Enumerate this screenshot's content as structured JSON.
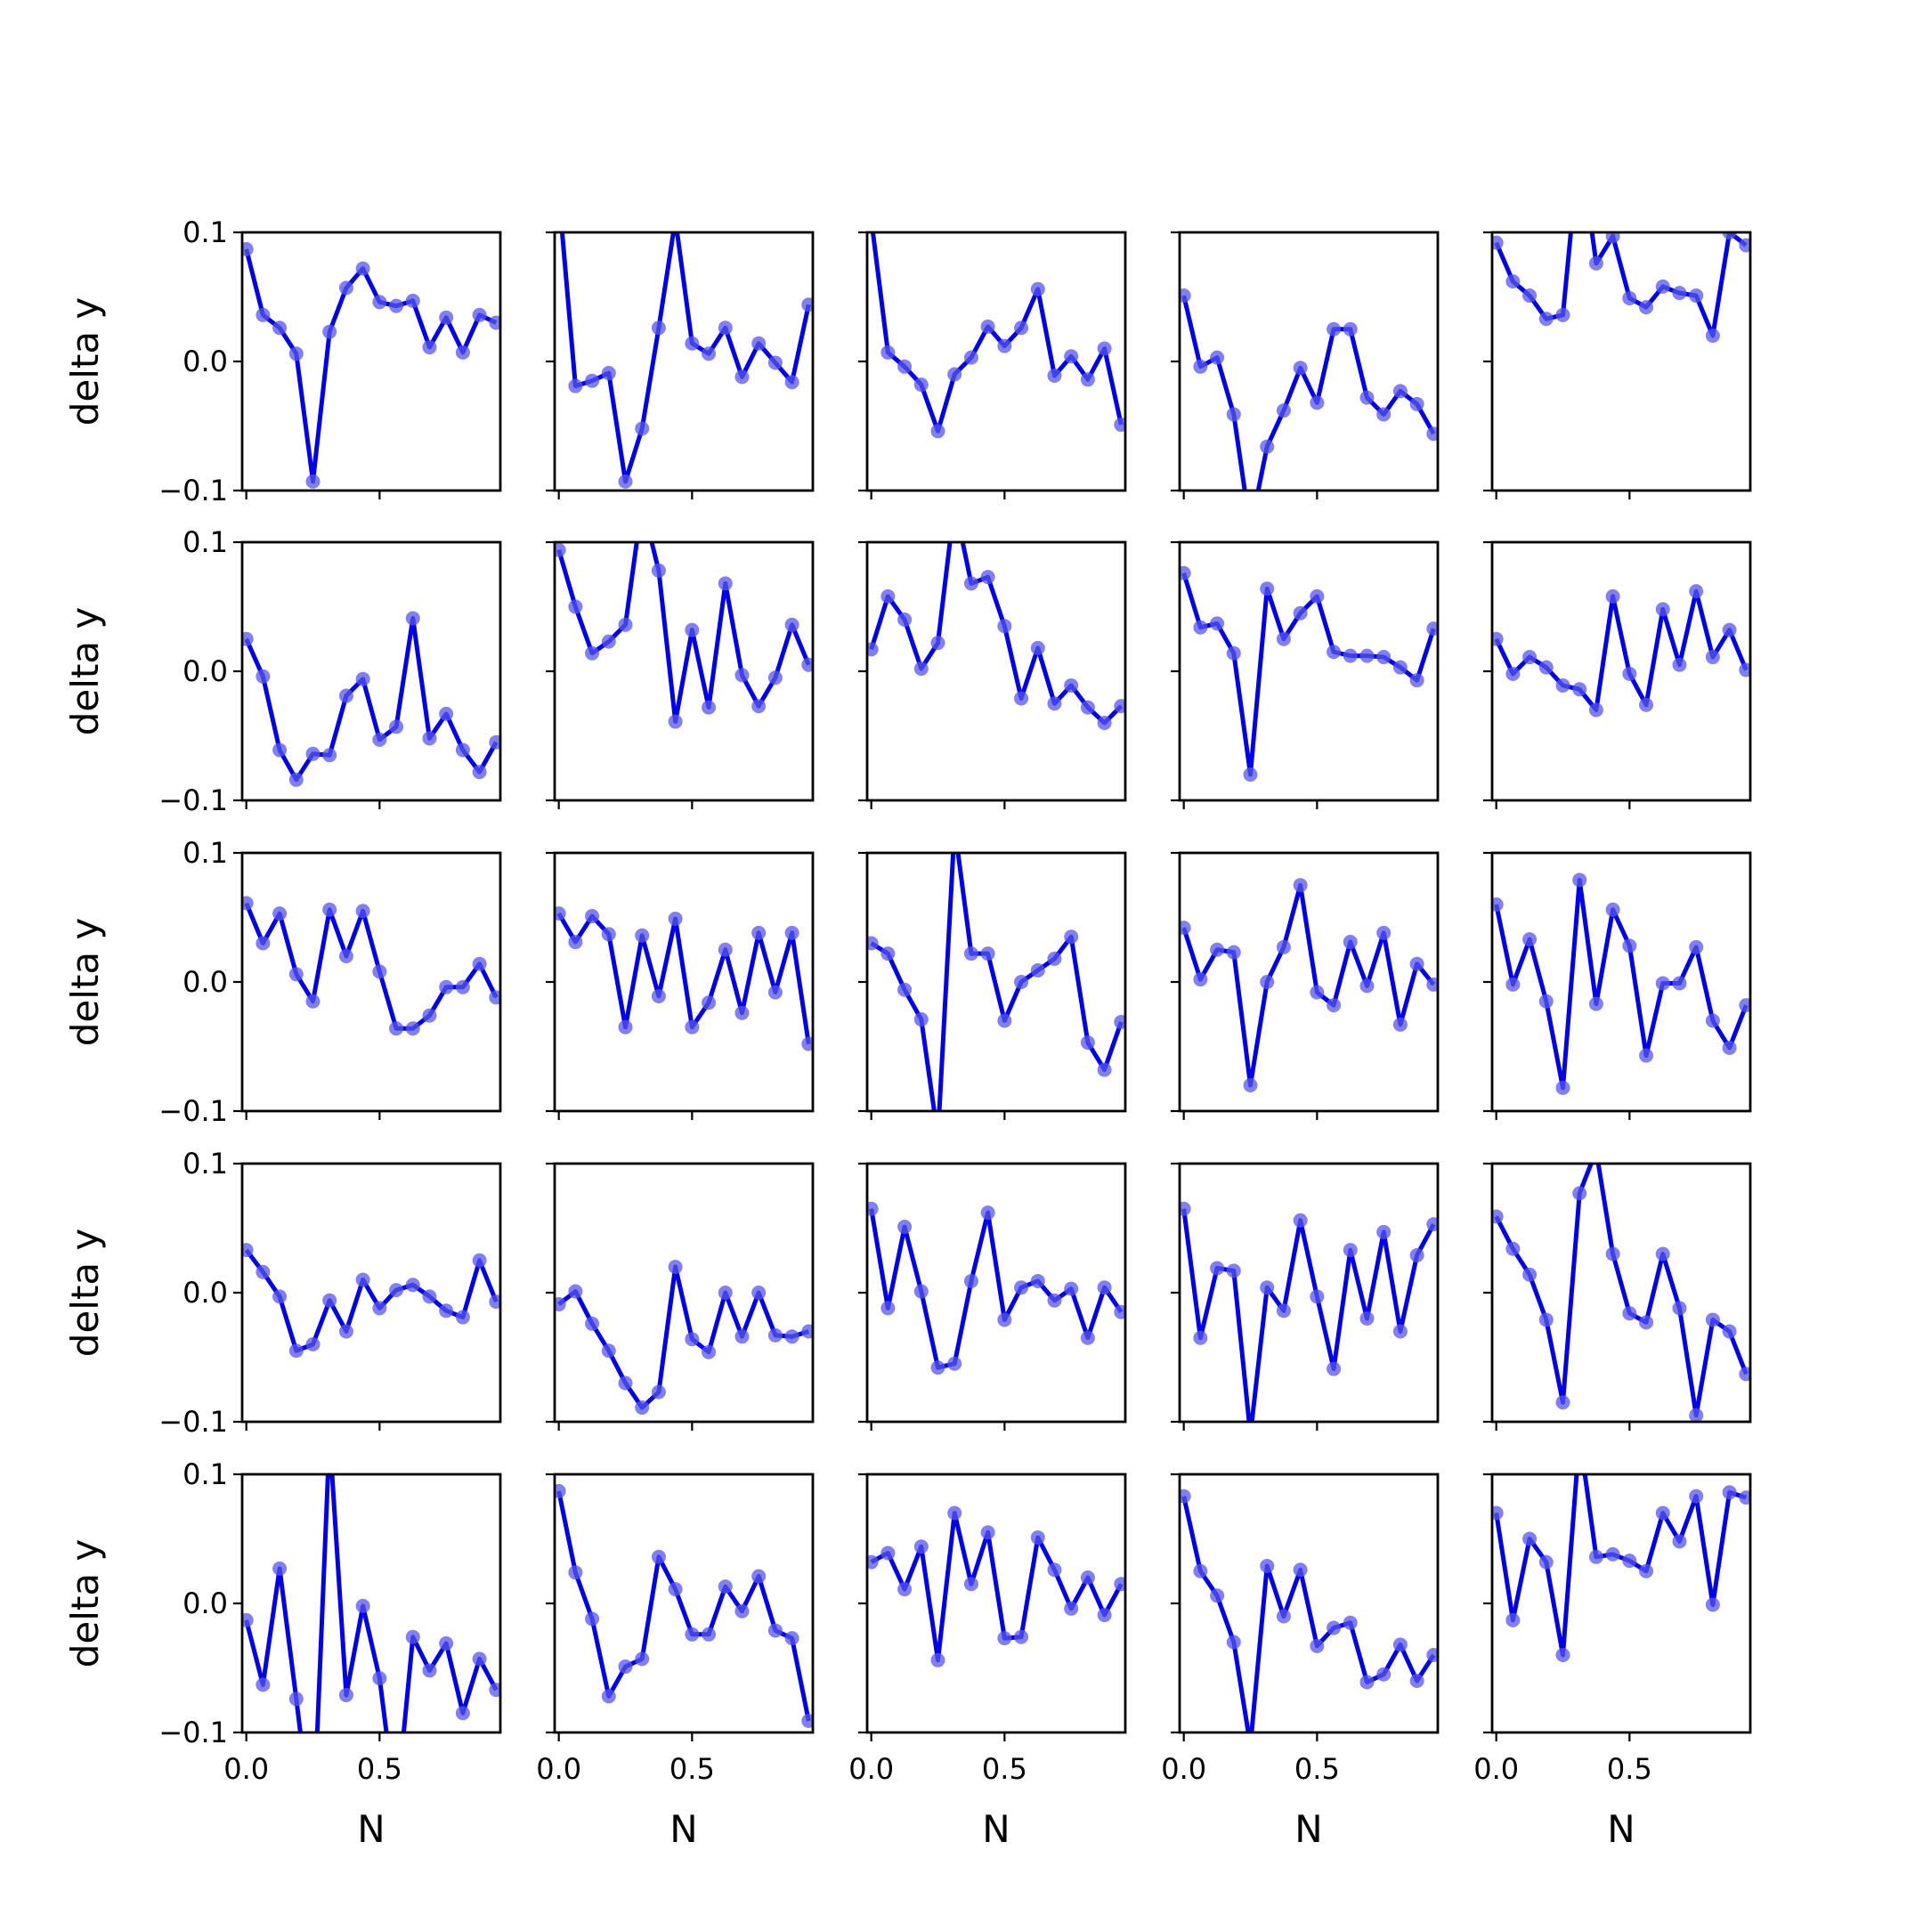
{
  "chart_data": {
    "type": "line",
    "layout": "5x5 small multiples",
    "sharey": true,
    "xlabel": "N",
    "ylabel": "delta y",
    "xlim": [
      -0.0156,
      0.9531
    ],
    "ylim": [
      -0.1,
      0.1
    ],
    "xticks": [
      0.0,
      0.5
    ],
    "xtick_labels": [
      "0.0",
      "0.5"
    ],
    "yticks": [
      -0.1,
      0.0,
      0.1
    ],
    "ytick_labels": [
      "−0.1",
      "0.0",
      "0.1"
    ],
    "grid": false,
    "legend": "none",
    "colors": {
      "line": "#0000ee",
      "marker": "#5555ee"
    },
    "x": [
      0.0,
      0.0625,
      0.125,
      0.1875,
      0.25,
      0.3125,
      0.375,
      0.4375,
      0.5,
      0.5625,
      0.625,
      0.6875,
      0.75,
      0.8125,
      0.875,
      0.9375
    ],
    "panels": [
      {
        "values": [
          0.087,
          0.036,
          0.026,
          0.006,
          -0.093,
          0.023,
          0.057,
          0.072,
          0.046,
          0.043,
          0.047,
          0.011,
          0.034,
          0.007,
          0.036,
          0.03
        ]
      },
      {
        "values": [
          0.13,
          -0.019,
          -0.015,
          -0.009,
          -0.093,
          -0.052,
          0.026,
          0.11,
          0.014,
          0.006,
          0.026,
          -0.012,
          0.014,
          -0.001,
          -0.016,
          0.044
        ]
      },
      {
        "values": [
          0.11,
          0.007,
          -0.004,
          -0.018,
          -0.054,
          -0.01,
          0.003,
          0.027,
          0.012,
          0.026,
          0.056,
          -0.011,
          0.004,
          -0.014,
          0.01,
          -0.049
        ]
      },
      {
        "values": [
          0.051,
          -0.004,
          0.003,
          -0.041,
          -0.13,
          -0.066,
          -0.038,
          -0.005,
          -0.032,
          0.025,
          0.025,
          -0.028,
          -0.041,
          -0.023,
          -0.033,
          -0.056
        ]
      },
      {
        "values": [
          0.092,
          0.062,
          0.051,
          0.033,
          0.036,
          0.17,
          0.076,
          0.097,
          0.049,
          0.042,
          0.058,
          0.053,
          0.051,
          0.02,
          0.1,
          0.09
        ]
      },
      {
        "values": [
          0.025,
          -0.004,
          -0.061,
          -0.084,
          -0.064,
          -0.065,
          -0.019,
          -0.006,
          -0.053,
          -0.043,
          0.041,
          -0.052,
          -0.033,
          -0.061,
          -0.078,
          -0.055
        ]
      },
      {
        "values": [
          0.094,
          0.05,
          0.014,
          0.023,
          0.036,
          0.13,
          0.078,
          -0.039,
          0.032,
          -0.028,
          0.068,
          -0.003,
          -0.027,
          -0.005,
          0.036,
          0.005
        ]
      },
      {
        "values": [
          0.017,
          0.058,
          0.04,
          0.002,
          0.022,
          0.13,
          0.068,
          0.073,
          0.035,
          -0.021,
          0.018,
          -0.025,
          -0.011,
          -0.028,
          -0.04,
          -0.027
        ]
      },
      {
        "values": [
          0.076,
          0.034,
          0.037,
          0.014,
          -0.08,
          0.064,
          0.025,
          0.045,
          0.058,
          0.015,
          0.012,
          0.012,
          0.011,
          0.003,
          -0.007,
          0.033
        ]
      },
      {
        "values": [
          0.025,
          -0.002,
          0.011,
          0.003,
          -0.011,
          -0.014,
          -0.03,
          0.058,
          -0.002,
          -0.026,
          0.048,
          0.005,
          0.062,
          0.011,
          0.032,
          0.001
        ]
      },
      {
        "values": [
          0.061,
          0.03,
          0.053,
          0.006,
          -0.015,
          0.056,
          0.02,
          0.055,
          0.008,
          -0.036,
          -0.036,
          -0.026,
          -0.004,
          -0.004,
          0.014,
          -0.012
        ]
      },
      {
        "values": [
          0.053,
          0.031,
          0.051,
          0.037,
          -0.035,
          0.036,
          -0.011,
          0.049,
          -0.035,
          -0.016,
          0.025,
          -0.024,
          0.038,
          -0.008,
          0.038,
          -0.048
        ]
      },
      {
        "values": [
          0.03,
          0.022,
          -0.006,
          -0.029,
          -0.12,
          0.12,
          0.022,
          0.022,
          -0.03,
          0.0,
          0.009,
          0.018,
          0.035,
          -0.047,
          -0.068,
          -0.031
        ]
      },
      {
        "values": [
          0.042,
          0.002,
          0.025,
          0.023,
          -0.08,
          0.0,
          0.027,
          0.075,
          -0.008,
          -0.018,
          0.031,
          -0.003,
          0.038,
          -0.033,
          0.014,
          -0.002
        ]
      },
      {
        "values": [
          0.06,
          -0.002,
          0.033,
          -0.015,
          -0.082,
          0.079,
          -0.017,
          0.056,
          0.028,
          -0.057,
          -0.001,
          -0.001,
          0.027,
          -0.03,
          -0.051,
          -0.018
        ]
      },
      {
        "values": [
          0.033,
          0.016,
          -0.003,
          -0.045,
          -0.04,
          -0.006,
          -0.03,
          0.01,
          -0.012,
          0.002,
          0.006,
          -0.003,
          -0.014,
          -0.019,
          0.025,
          -0.007
        ]
      },
      {
        "values": [
          -0.009,
          0.001,
          -0.024,
          -0.045,
          -0.07,
          -0.089,
          -0.077,
          0.02,
          -0.036,
          -0.046,
          0.0,
          -0.034,
          0.0,
          -0.033,
          -0.034,
          -0.03
        ]
      },
      {
        "values": [
          0.065,
          -0.012,
          0.051,
          0.001,
          -0.058,
          -0.055,
          0.009,
          0.062,
          -0.021,
          0.004,
          0.009,
          -0.006,
          0.003,
          -0.035,
          0.004,
          -0.015
        ]
      },
      {
        "values": [
          0.065,
          -0.035,
          0.019,
          0.017,
          -0.11,
          0.004,
          -0.014,
          0.056,
          -0.003,
          -0.059,
          0.033,
          -0.02,
          0.047,
          -0.03,
          0.029,
          0.053
        ]
      },
      {
        "values": [
          0.059,
          0.034,
          0.014,
          -0.021,
          -0.085,
          0.077,
          0.11,
          0.03,
          -0.016,
          -0.023,
          0.03,
          -0.012,
          -0.095,
          -0.021,
          -0.03,
          -0.063
        ]
      },
      {
        "values": [
          -0.013,
          -0.063,
          0.027,
          -0.074,
          -0.18,
          0.13,
          -0.071,
          -0.002,
          -0.058,
          -0.16,
          -0.026,
          -0.052,
          -0.031,
          -0.085,
          -0.043,
          -0.067
        ]
      },
      {
        "values": [
          0.087,
          0.024,
          -0.012,
          -0.072,
          -0.049,
          -0.043,
          0.036,
          0.011,
          -0.024,
          -0.024,
          0.013,
          -0.006,
          0.021,
          -0.021,
          -0.027,
          -0.091
        ]
      },
      {
        "values": [
          0.032,
          0.039,
          0.011,
          0.044,
          -0.044,
          0.07,
          0.015,
          0.055,
          -0.027,
          -0.026,
          0.051,
          0.026,
          -0.004,
          0.02,
          -0.009,
          0.015
        ]
      },
      {
        "values": [
          0.083,
          0.025,
          0.006,
          -0.03,
          -0.11,
          0.029,
          -0.01,
          0.026,
          -0.033,
          -0.019,
          -0.015,
          -0.061,
          -0.055,
          -0.032,
          -0.06,
          -0.04
        ]
      },
      {
        "values": [
          0.07,
          -0.013,
          0.05,
          0.032,
          -0.04,
          0.13,
          0.036,
          0.038,
          0.033,
          0.025,
          0.07,
          0.048,
          0.083,
          -0.001,
          0.086,
          0.082
        ]
      }
    ]
  }
}
